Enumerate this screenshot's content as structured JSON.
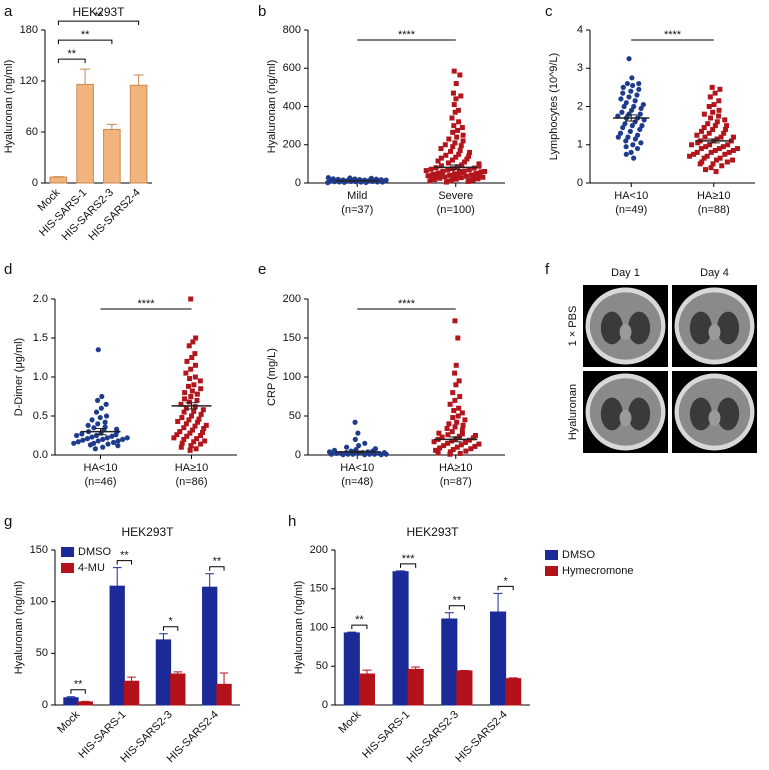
{
  "chart_data": [
    {
      "panel": "a",
      "type": "bar",
      "title": "HEK293T",
      "ylabel": "Hyaluronan (ng/ml)",
      "categories": [
        "Mock",
        "HIS-SARS-1",
        "HIS-SARS2-3",
        "HIS-SARS2-4"
      ],
      "series": [
        {
          "color": "#f0b47c",
          "values": [
            7,
            116,
            63,
            115
          ],
          "errors": [
            0.5,
            18,
            6,
            12
          ]
        }
      ],
      "ylim": [
        0,
        180
      ],
      "yticks": [
        0,
        60,
        120,
        180
      ],
      "significance": [
        {
          "from": 0,
          "to": 1,
          "label": "**"
        },
        {
          "from": 0,
          "to": 2,
          "label": "**"
        },
        {
          "from": 0,
          "to": 3,
          "label": "**"
        }
      ]
    },
    {
      "panel": "b",
      "type": "dotplot",
      "ylabel": "Hyaluronan (ng/ml)",
      "categories": [
        [
          "Mild",
          "(n=37)"
        ],
        [
          "Severe",
          "(n=100)"
        ]
      ],
      "groups": [
        {
          "color": "#1f3c8c",
          "marker": "circle",
          "mean": 12,
          "sem": 1,
          "values": [
            2,
            3,
            4,
            5,
            5,
            6,
            6,
            7,
            7,
            8,
            8,
            8,
            9,
            9,
            10,
            10,
            10,
            11,
            11,
            12,
            12,
            13,
            13,
            14,
            14,
            15,
            15,
            16,
            17,
            18,
            19,
            20,
            21,
            22,
            24,
            26,
            28
          ]
        },
        {
          "color": "#b3151c",
          "marker": "square",
          "mean": 82,
          "sem": 12,
          "values": [
            585,
            565,
            520,
            470,
            455,
            440,
            410,
            380,
            370,
            340,
            320,
            300,
            290,
            275,
            265,
            250,
            240,
            230,
            220,
            210,
            200,
            195,
            190,
            180,
            170,
            165,
            160,
            150,
            145,
            140,
            135,
            130,
            125,
            120,
            115,
            110,
            105,
            100,
            95,
            90,
            88,
            85,
            80,
            78,
            75,
            72,
            70,
            68,
            65,
            62,
            60,
            58,
            55,
            52,
            50,
            48,
            45,
            42,
            40,
            38,
            35,
            32,
            30,
            28,
            25,
            22,
            20,
            18,
            15,
            12,
            10,
            8,
            5,
            60,
            55,
            50,
            45,
            40,
            35,
            30,
            25,
            20,
            15,
            10
          ]
        }
      ],
      "ylim": [
        0,
        800
      ],
      "yticks": [
        0,
        200,
        400,
        600,
        800
      ],
      "significance": [
        {
          "from": 0,
          "to": 1,
          "label": "****"
        }
      ]
    },
    {
      "panel": "c",
      "type": "dotplot",
      "ylabel": "Lymphocytes (10^9/L)",
      "categories": [
        [
          "HA<10",
          "(n=49)"
        ],
        [
          "HA≥10",
          "(n=88)"
        ]
      ],
      "groups": [
        {
          "color": "#1f3c8c",
          "marker": "circle",
          "mean": 1.7,
          "sem": 0.08,
          "values": [
            3.25,
            2.75,
            2.6,
            2.6,
            2.55,
            2.5,
            2.45,
            2.4,
            2.35,
            2.3,
            2.25,
            2.2,
            2.15,
            2.1,
            2.05,
            2.0,
            2.0,
            1.95,
            1.9,
            1.85,
            1.8,
            1.8,
            1.75,
            1.7,
            1.7,
            1.65,
            1.6,
            1.55,
            1.5,
            1.5,
            1.45,
            1.4,
            1.35,
            1.3,
            1.25,
            1.2,
            1.2,
            1.15,
            1.1,
            1.05,
            1.0,
            0.95,
            0.9,
            0.8,
            0.75,
            0.65
          ]
        },
        {
          "color": "#b3151c",
          "marker": "square",
          "mean": 1.1,
          "sem": 0.05,
          "values": [
            2.5,
            2.45,
            2.35,
            2.25,
            2.15,
            2.05,
            2.0,
            1.9,
            1.85,
            1.8,
            1.75,
            1.7,
            1.65,
            1.6,
            1.55,
            1.5,
            1.5,
            1.45,
            1.4,
            1.4,
            1.35,
            1.3,
            1.3,
            1.25,
            1.2,
            1.2,
            1.2,
            1.15,
            1.1,
            1.1,
            1.1,
            1.05,
            1.0,
            1.0,
            1.0,
            0.95,
            0.95,
            0.9,
            0.9,
            0.9,
            0.85,
            0.85,
            0.8,
            0.8,
            0.8,
            0.75,
            0.75,
            0.7,
            0.7,
            0.65,
            0.65,
            0.6,
            0.6,
            0.55,
            0.55,
            0.5,
            0.5,
            0.45,
            0.4,
            0.35,
            0.3
          ]
        }
      ],
      "ylim": [
        0,
        4
      ],
      "yticks": [
        0,
        1,
        2,
        3,
        4
      ],
      "significance": [
        {
          "from": 0,
          "to": 1,
          "label": "****"
        }
      ]
    },
    {
      "panel": "d",
      "type": "dotplot",
      "ylabel": "D-Dimer (μg/ml)",
      "categories": [
        [
          "HA<10",
          "(n=46)"
        ],
        [
          "HA≥10",
          "(n=86)"
        ]
      ],
      "groups": [
        {
          "color": "#1f3c8c",
          "marker": "circle",
          "mean": 0.3,
          "sem": 0.04,
          "values": [
            1.35,
            0.75,
            0.7,
            0.65,
            0.6,
            0.55,
            0.5,
            0.48,
            0.45,
            0.42,
            0.4,
            0.38,
            0.36,
            0.35,
            0.33,
            0.32,
            0.3,
            0.3,
            0.28,
            0.27,
            0.26,
            0.25,
            0.25,
            0.24,
            0.23,
            0.22,
            0.22,
            0.21,
            0.2,
            0.2,
            0.19,
            0.18,
            0.18,
            0.17,
            0.16,
            0.15,
            0.15,
            0.14,
            0.13,
            0.12,
            0.1,
            0.08
          ]
        },
        {
          "color": "#b3151c",
          "marker": "square",
          "mean": 0.63,
          "sem": 0.04,
          "values": [
            2.0,
            1.5,
            1.45,
            1.4,
            1.3,
            1.25,
            1.2,
            1.15,
            1.1,
            1.05,
            1.0,
            0.98,
            0.95,
            0.9,
            0.88,
            0.85,
            0.82,
            0.8,
            0.78,
            0.75,
            0.72,
            0.7,
            0.68,
            0.65,
            0.62,
            0.6,
            0.58,
            0.56,
            0.55,
            0.52,
            0.5,
            0.48,
            0.46,
            0.45,
            0.43,
            0.42,
            0.4,
            0.38,
            0.37,
            0.35,
            0.34,
            0.32,
            0.3,
            0.29,
            0.28,
            0.26,
            0.25,
            0.24,
            0.22,
            0.21,
            0.2,
            0.18,
            0.17,
            0.15,
            0.14,
            0.12,
            0.1,
            0.08,
            0.06
          ]
        }
      ],
      "ylim": [
        0,
        2
      ],
      "yticks": [
        {
          "value": 0,
          "label": "0.0"
        },
        0.5,
        {
          "value": 1,
          "label": "1.0"
        },
        1.5,
        {
          "value": 2,
          "label": "2.0"
        }
      ],
      "significance": [
        {
          "from": 0,
          "to": 1,
          "label": "****"
        }
      ]
    },
    {
      "panel": "e",
      "type": "dotplot",
      "ylabel": "CRP (mg/L)",
      "categories": [
        [
          "HA<10",
          "(n=48)"
        ],
        [
          "HA≥10",
          "(n=87)"
        ]
      ],
      "groups": [
        {
          "color": "#1f3c8c",
          "marker": "circle",
          "mean": 4,
          "sem": 1,
          "values": [
            42,
            28,
            20,
            15,
            12,
            10,
            8,
            7,
            6,
            5,
            5,
            4,
            4,
            3,
            3,
            3,
            2,
            2,
            2,
            2,
            1,
            1,
            1,
            1,
            1,
            1,
            0.5,
            0.5,
            0.5
          ]
        },
        {
          "color": "#b3151c",
          "marker": "square",
          "mean": 20,
          "sem": 3,
          "values": [
            172,
            150,
            115,
            105,
            95,
            90,
            80,
            75,
            70,
            65,
            60,
            57,
            54,
            50,
            48,
            45,
            42,
            40,
            38,
            36,
            34,
            32,
            30,
            28,
            27,
            26,
            25,
            24,
            23,
            22,
            21,
            20,
            19,
            18,
            17,
            16,
            15,
            14,
            13,
            12,
            11,
            10,
            9,
            8,
            7,
            6,
            5,
            4,
            3,
            2,
            1
          ]
        }
      ],
      "ylim": [
        0,
        200
      ],
      "yticks": [
        0,
        50,
        100,
        150,
        200
      ],
      "significance": [
        {
          "from": 0,
          "to": 1,
          "label": "****"
        }
      ]
    },
    {
      "panel": "f",
      "type": "image",
      "columns": [
        "Day 1",
        "Day 4"
      ],
      "rows": [
        "1 × PBS",
        "Hyaluronan"
      ]
    },
    {
      "panel": "g",
      "type": "bar",
      "title": "HEK293T",
      "ylabel": "Hyaluronan (ng/ml)",
      "categories": [
        "Mock",
        "HIS-SARS-1",
        "HIS-SARS2-3",
        "HIS-SARS2-4"
      ],
      "series": [
        {
          "name": "DMSO",
          "color": "#1b2a96",
          "values": [
            7,
            115,
            63,
            114
          ],
          "errors": [
            1,
            18,
            6,
            13
          ]
        },
        {
          "name": "4-MU",
          "color": "#b3121b",
          "values": [
            3,
            23,
            30,
            20
          ],
          "errors": [
            0.5,
            4,
            2,
            11
          ]
        }
      ],
      "ylim": [
        0,
        150
      ],
      "yticks": [
        0,
        50,
        100,
        150
      ],
      "legend": "upper left",
      "significance": [
        {
          "category": 0,
          "label": "**"
        },
        {
          "category": 1,
          "label": "**"
        },
        {
          "category": 2,
          "label": "*"
        },
        {
          "category": 3,
          "label": "**"
        }
      ]
    },
    {
      "panel": "h",
      "type": "bar",
      "title": "HEK293T",
      "ylabel": "Hyaluronan (ng/ml)",
      "categories": [
        "Mock",
        "HIS-SARS-1",
        "HIS-SARS2-3",
        "HIS-SARS2-4"
      ],
      "series": [
        {
          "name": "DMSO",
          "color": "#1b2a96",
          "values": [
            93,
            172,
            111,
            120
          ],
          "errors": [
            1,
            1,
            8,
            24
          ]
        },
        {
          "name": "Hymecromone",
          "color": "#b3121b",
          "values": [
            40,
            46,
            44,
            34
          ],
          "errors": [
            5,
            3,
            0.5,
            1
          ]
        }
      ],
      "ylim": [
        0,
        200
      ],
      "yticks": [
        0,
        50,
        100,
        150,
        200
      ],
      "legend": "right",
      "significance": [
        {
          "category": 0,
          "label": "**"
        },
        {
          "category": 1,
          "label": "***"
        },
        {
          "category": 2,
          "label": "**"
        },
        {
          "category": 3,
          "label": "*"
        }
      ]
    }
  ]
}
